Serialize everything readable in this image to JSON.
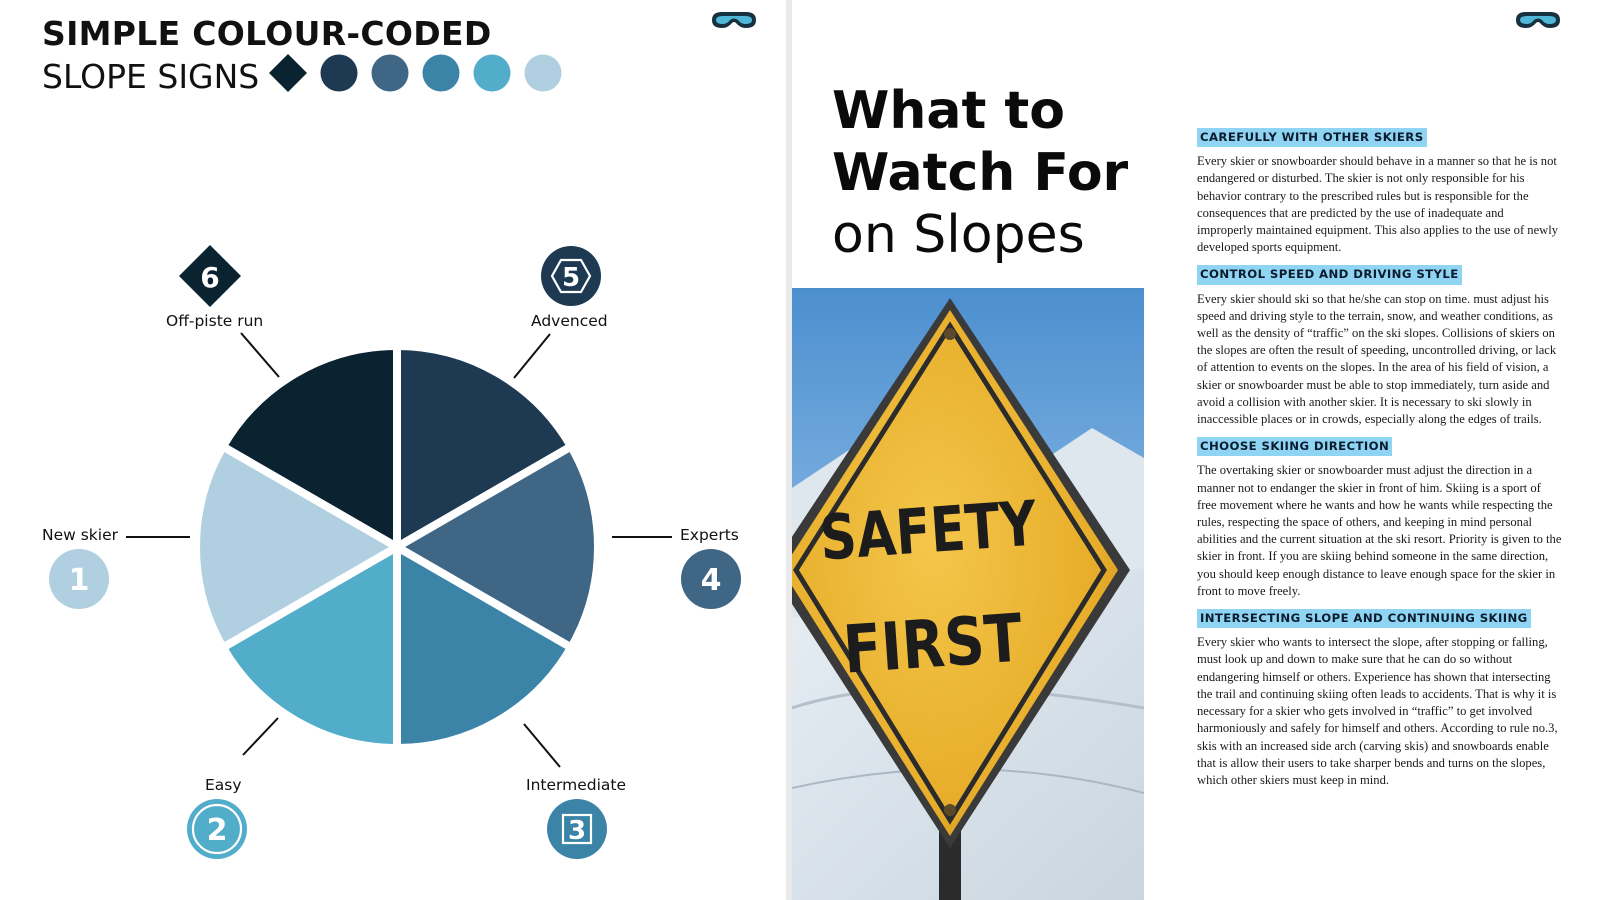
{
  "left_page": {
    "title_line1": "SIMPLE COLOUR-CODED",
    "title_line2": "SLOPE SIGNS",
    "swatch_colors": [
      "#0b2231",
      "#1e3a53",
      "#3f6684",
      "#3b84a8",
      "#52adca",
      "#b0d0e1"
    ],
    "goggles_icon": "ski-goggles-icon",
    "slope_levels": [
      {
        "number": "1",
        "label": "New skier",
        "color": "#b0d0e1",
        "shape": "circle"
      },
      {
        "number": "2",
        "label": "Easy",
        "color": "#52adca",
        "shape": "circle-ring"
      },
      {
        "number": "3",
        "label": "Intermediate",
        "color": "#3b84a8",
        "shape": "square-in-circle"
      },
      {
        "number": "4",
        "label": "Experts",
        "color": "#3f6684",
        "shape": "circle"
      },
      {
        "number": "5",
        "label": "Advenced",
        "color": "#1e3a53",
        "shape": "hexagon-in-circle"
      },
      {
        "number": "6",
        "label": "Off-piste run",
        "color": "#0b2231",
        "shape": "diamond"
      }
    ]
  },
  "right_page": {
    "headline_line1": "What to",
    "headline_line2": "Watch For",
    "headline_line3": "on Slopes",
    "photo_sign_line1": "SAFETY",
    "photo_sign_line2": "FIRST",
    "goggles_icon": "ski-goggles-icon",
    "sections": [
      {
        "heading": "CAREFULLY WITH OTHER SKIERS",
        "body": "Every skier or snowboarder should behave in a manner so that he is not endangered or disturbed. The skier is not only responsible for his behavior contrary to the prescribed rules but is responsible for the consequences that are predicted by the use of inadequate and improperly maintained equipment. This also applies to the use of newly developed sports equipment."
      },
      {
        "heading": "CONTROL SPEED AND DRIVING STYLE",
        "body": "Every skier should ski so that he/she can stop on time.  must adjust his speed and driving style to the terrain, snow, and weather conditions, as well as the density of “traffic” on the ski slopes. Collisions of skiers on the slopes are often the result of speeding, uncontrolled driving, or lack of attention to events on the slopes. In the area of his field of vision, a skier or snowboarder must be able to stop immediately, turn aside and avoid a collision with another skier. It is necessary to ski slowly in inaccessible places or in crowds, especially along the edges of trails."
      },
      {
        "heading": "CHOOSE SKIING DIRECTION",
        "body": "The overtaking skier or snowboarder must adjust the direction in a manner not to endanger the skier in front of him. Skiing is a sport of free movement where he wants and how he wants while respecting the rules, respecting the space of others, and keeping in mind personal abilities and the current situation at the ski resort. Priority is given to the skier in front. If you are skiing behind someone in the same direction, you should keep enough distance to leave enough space for the skier in front to move freely."
      },
      {
        "heading": "INTERSECTING SLOPE AND CONTINUING SKIING",
        "body": "Every skier who wants to intersect the slope, after stopping or falling, must look up and down to make sure that he can do so without endangering himself or others. Experience has shown that intersecting the trail and continuing skiing often leads to accidents. That is why it is necessary for a skier who gets involved in “traffic” to get involved harmoniously and safely for himself and others. According to rule no.3, skis with an increased side arch (carving skis) and snowboards enable that is allow their users to take sharper bends and turns on the slopes, which other skiers must keep in mind."
      }
    ]
  }
}
